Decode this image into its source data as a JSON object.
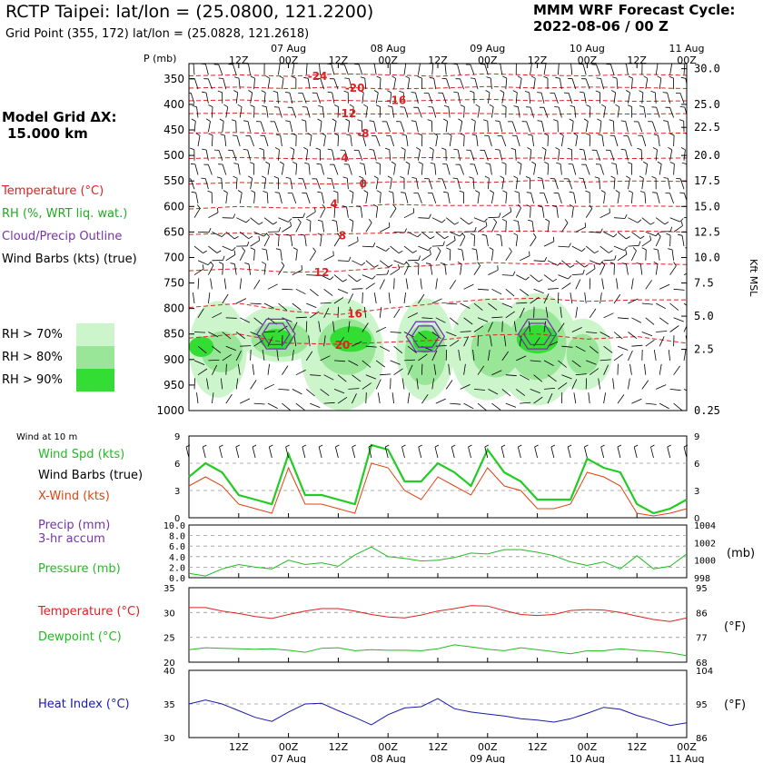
{
  "header": {
    "title": "RCTP Taipei:  lat/lon = (25.0800, 121.2200)",
    "subtitle": "Grid Point (355, 172) lat/lon = (25.0828, 121.2618)",
    "cycle_line1": "MMM WRF Forecast Cycle:",
    "cycle_line2": "2022-08-06 / 00  Z",
    "p_label": "P (mb)"
  },
  "left_panel": {
    "model_grid_label": "Model Grid ΔX:",
    "model_grid_value": "15.000 km",
    "legend_temperature": "Temperature (°C)",
    "legend_rh": "RH (%, WRT liq. wat.)",
    "legend_cloud": "Cloud/Precip Outline",
    "legend_barbs": "Wind Barbs (kts) (true)",
    "rh_bins": [
      {
        "label": "RH > 70%",
        "color": "#ccf5cc"
      },
      {
        "label": "RH > 80%",
        "color": "#99e699"
      },
      {
        "label": "RH > 90%",
        "color": "#33dd33"
      }
    ],
    "wind10_label": "Wind at 10 m",
    "wind_spd_label": "Wind Spd (kts)",
    "wind_barbs_label": "Wind Barbs (true)",
    "xwind_label": "X-Wind (kts)",
    "precip_label": "Precip (mm)",
    "precip_sub": "3-hr accum",
    "pressure_label": "Pressure (mb)",
    "temp_label": "Temperature (°C)",
    "dew_label": "Dewpoint (°C)",
    "heat_label": "Heat Index (°C)"
  },
  "colors": {
    "temperature": "#dd2222",
    "rh_green": "#22cc22",
    "cloud": "#7733aa",
    "xwind": "#dd4411",
    "pressure": "#22bb22",
    "dewpoint": "#22bb22",
    "heat": "#1a1aaa",
    "grid": "#999999"
  },
  "chart_data": [
    {
      "type": "heatmap",
      "name": "sounding-cross-section",
      "xlabel_top": "time (UTC)",
      "time_ticks": [
        "12Z",
        "00Z",
        "12Z",
        "00Z",
        "12Z",
        "00Z",
        "12Z",
        "00Z",
        "12Z",
        "00Z"
      ],
      "date_ticks": [
        "07 Aug",
        "08 Aug",
        "09 Aug",
        "10 Aug",
        "11 Aug"
      ],
      "x_hours": [
        0,
        120
      ],
      "pressure_ticks": [
        350,
        400,
        450,
        500,
        550,
        600,
        650,
        700,
        750,
        800,
        850,
        900,
        950,
        1000
      ],
      "height_ticks": [
        "30.0",
        "25.0",
        "22.5",
        "20.0",
        "17.5",
        "15.0",
        "12.5",
        "10.0",
        "7.5",
        "5.0",
        "2.5",
        "0.25"
      ],
      "height_pressures": [
        330,
        400,
        445,
        500,
        550,
        600,
        650,
        700,
        750,
        815,
        880,
        1000
      ],
      "right_label": "Kft MSL",
      "isotherm_labels": [
        {
          "text": "-24",
          "hour": 31,
          "p": 345
        },
        {
          "text": "-20",
          "hour": 40,
          "p": 368
        },
        {
          "text": "-16",
          "hour": 50,
          "p": 392
        },
        {
          "text": "-12",
          "hour": 38,
          "p": 418
        },
        {
          "text": "-8",
          "hour": 42,
          "p": 457
        },
        {
          "text": "-4",
          "hour": 37,
          "p": 505
        },
        {
          "text": "0",
          "hour": 42,
          "p": 556
        },
        {
          "text": "4",
          "hour": 35,
          "p": 595
        },
        {
          "text": "8",
          "hour": 37,
          "p": 657
        },
        {
          "text": "12",
          "hour": 32,
          "p": 729
        },
        {
          "text": "16",
          "hour": 40,
          "p": 810
        },
        {
          "text": "20",
          "hour": 37,
          "p": 872
        }
      ],
      "isotherms": [
        {
          "temp": -24,
          "p": [
            344,
            342,
            345,
            340,
            342,
            345,
            340,
            343,
            344,
            341,
            343
          ]
        },
        {
          "temp": -20,
          "p": [
            368,
            366,
            369,
            366,
            370,
            368,
            365,
            368,
            366,
            367,
            369
          ]
        },
        {
          "temp": -16,
          "p": [
            393,
            391,
            395,
            392,
            394,
            392,
            390,
            393,
            392,
            394,
            393
          ]
        },
        {
          "temp": -12,
          "p": [
            418,
            417,
            420,
            418,
            419,
            417,
            418,
            420,
            418,
            419,
            418
          ]
        },
        {
          "temp": -8,
          "p": [
            456,
            455,
            458,
            457,
            456,
            458,
            456,
            457,
            456,
            457,
            456
          ]
        },
        {
          "temp": -4,
          "p": [
            506,
            504,
            506,
            507,
            505,
            504,
            506,
            505,
            507,
            506,
            505
          ]
        },
        {
          "temp": 0,
          "p": [
            556,
            553,
            555,
            556,
            552,
            551,
            553,
            549,
            552,
            550,
            551
          ]
        },
        {
          "temp": 4,
          "p": [
            605,
            600,
            603,
            602,
            596,
            598,
            598,
            598,
            600,
            599,
            600
          ]
        },
        {
          "temp": 8,
          "p": [
            655,
            652,
            656,
            654,
            652,
            650,
            649,
            648,
            650,
            648,
            650
          ]
        },
        {
          "temp": 12,
          "p": [
            726,
            722,
            729,
            727,
            720,
            715,
            710,
            713,
            712,
            712,
            714
          ]
        },
        {
          "temp": 16,
          "p": [
            798,
            790,
            805,
            812,
            800,
            790,
            782,
            780,
            786,
            783,
            783
          ]
        },
        {
          "temp": 20,
          "p": [
            858,
            850,
            868,
            870,
            866,
            862,
            852,
            850,
            860,
            855,
            868
          ]
        }
      ],
      "rh_blobs": [
        {
          "level": 70,
          "hour": 7,
          "p": 880,
          "rx": 7,
          "ry": 95
        },
        {
          "level": 80,
          "hour": 8,
          "p": 885,
          "rx": 5,
          "ry": 40
        },
        {
          "level": 90,
          "hour": 3,
          "p": 875,
          "rx": 3,
          "ry": 20
        },
        {
          "level": 70,
          "hour": 22,
          "p": 850,
          "rx": 10,
          "ry": 55
        },
        {
          "level": 80,
          "hour": 22,
          "p": 860,
          "rx": 7,
          "ry": 35
        },
        {
          "level": 90,
          "hour": 21,
          "p": 860,
          "rx": 4,
          "ry": 20
        },
        {
          "level": 70,
          "hour": 37,
          "p": 890,
          "rx": 10,
          "ry": 110
        },
        {
          "level": 80,
          "hour": 38,
          "p": 875,
          "rx": 7,
          "ry": 55
        },
        {
          "level": 90,
          "hour": 39,
          "p": 860,
          "rx": 5,
          "ry": 25
        },
        {
          "level": 70,
          "hour": 57,
          "p": 880,
          "rx": 7,
          "ry": 100
        },
        {
          "level": 80,
          "hour": 57,
          "p": 890,
          "rx": 5,
          "ry": 60
        },
        {
          "level": 90,
          "hour": 57,
          "p": 865,
          "rx": 3,
          "ry": 22
        },
        {
          "level": 70,
          "hour": 72,
          "p": 880,
          "rx": 9,
          "ry": 100
        },
        {
          "level": 80,
          "hour": 74,
          "p": 880,
          "rx": 6,
          "ry": 55
        },
        {
          "level": 70,
          "hour": 84,
          "p": 880,
          "rx": 10,
          "ry": 110
        },
        {
          "level": 80,
          "hour": 84,
          "p": 870,
          "rx": 7,
          "ry": 70
        },
        {
          "level": 90,
          "hour": 84,
          "p": 860,
          "rx": 5,
          "ry": 28
        },
        {
          "level": 70,
          "hour": 95,
          "p": 890,
          "rx": 7,
          "ry": 70
        },
        {
          "level": 80,
          "hour": 95,
          "p": 890,
          "rx": 4,
          "ry": 40
        }
      ],
      "cloud_outlines": [
        {
          "hour": 21,
          "p": 850
        },
        {
          "hour": 57,
          "p": 855
        },
        {
          "hour": 84,
          "p": 850
        }
      ]
    },
    {
      "type": "line",
      "name": "surface-wind",
      "x_hours": [
        0,
        4,
        8,
        12,
        16,
        20,
        24,
        28,
        32,
        36,
        40,
        44,
        48,
        52,
        56,
        60,
        64,
        68,
        72,
        76,
        80,
        84,
        88,
        92,
        96,
        100,
        104,
        108,
        112,
        116,
        120
      ],
      "ylim": [
        0,
        9
      ],
      "yticks": [
        0,
        3,
        6,
        9
      ],
      "series": [
        {
          "name": "Wind Spd (kts)",
          "values": [
            4.5,
            6,
            5,
            2.5,
            2,
            1.5,
            7,
            2.5,
            2.5,
            2,
            1.5,
            8,
            7.5,
            4,
            4,
            6,
            5,
            3.5,
            7.5,
            5,
            4,
            2,
            2,
            2,
            6.5,
            5.5,
            5,
            1.5,
            0.5,
            1,
            2
          ]
        },
        {
          "name": "X-Wind (kts)",
          "values": [
            3.5,
            4.5,
            3.5,
            1.5,
            1,
            0.5,
            5.5,
            1.5,
            1.5,
            1,
            0.5,
            6,
            5.5,
            3,
            2,
            4.5,
            3.5,
            2.5,
            5.5,
            3.5,
            3,
            1,
            1,
            1.5,
            5,
            4.5,
            3.5,
            0.5,
            0.2,
            0.5,
            1
          ]
        }
      ]
    },
    {
      "type": "line",
      "name": "precip-pressure",
      "x_hours": [
        0,
        4,
        8,
        12,
        16,
        20,
        24,
        28,
        32,
        36,
        40,
        44,
        48,
        52,
        56,
        60,
        64,
        68,
        72,
        76,
        80,
        84,
        88,
        92,
        96,
        100,
        104,
        108,
        112,
        116,
        120
      ],
      "ylim_precip": [
        0,
        10
      ],
      "yticks_precip": [
        "10.0",
        "8.0",
        "6.0",
        "4.0",
        "2.0",
        "0.0"
      ],
      "ylim_pressure": [
        998,
        1004
      ],
      "yticks_pressure": [
        "1004",
        "1002",
        "1000",
        "998"
      ],
      "series": [
        {
          "name": "Pressure (mb)",
          "values": [
            998.5,
            998.2,
            999,
            999.5,
            999.2,
            999,
            1000,
            999.5,
            999.7,
            999.3,
            1000.6,
            1001.5,
            1000.4,
            1000.2,
            999.9,
            1000,
            1000.3,
            1000.8,
            1000.7,
            1001.2,
            1001.2,
            1000.9,
            1000.5,
            999.8,
            999.4,
            999.8,
            999,
            1000.5,
            999,
            999.3,
            1000.7
          ]
        }
      ]
    },
    {
      "type": "line",
      "name": "temperature-dewpoint",
      "x_hours": [
        0,
        4,
        8,
        12,
        16,
        20,
        24,
        28,
        32,
        36,
        40,
        44,
        48,
        52,
        56,
        60,
        64,
        68,
        72,
        76,
        80,
        84,
        88,
        92,
        96,
        100,
        104,
        108,
        112,
        116,
        120
      ],
      "ylim": [
        20,
        35
      ],
      "yticks": [
        20,
        25,
        30,
        35
      ],
      "yticks_f": [
        "68",
        "77",
        "86",
        "95"
      ],
      "right_label": "(°F)",
      "series": [
        {
          "name": "Temperature (°C)",
          "values": [
            31,
            31,
            30.3,
            29.8,
            29.2,
            28.8,
            29.6,
            30.3,
            30.8,
            30.8,
            30.3,
            29.6,
            29.1,
            28.9,
            29.5,
            30.3,
            30.8,
            31.4,
            31.3,
            30.4,
            29.6,
            29.4,
            29.6,
            30.4,
            30.6,
            30.5,
            30,
            29.3,
            28.6,
            28.2,
            28.9
          ]
        },
        {
          "name": "Dewpoint (°C)",
          "values": [
            22.5,
            22.9,
            22.8,
            22.7,
            22.6,
            22.7,
            22.4,
            22,
            22.8,
            22.9,
            22.3,
            22.5,
            22.4,
            22.4,
            22.3,
            22.7,
            23.5,
            23.1,
            22.6,
            22.3,
            22.9,
            22.5,
            22.1,
            21.7,
            22.3,
            22.3,
            22.7,
            22.4,
            22.2,
            21.9,
            21.3
          ]
        }
      ]
    },
    {
      "type": "line",
      "name": "heat-index",
      "x_hours": [
        0,
        4,
        8,
        12,
        16,
        20,
        24,
        28,
        32,
        36,
        40,
        44,
        48,
        52,
        56,
        60,
        64,
        68,
        72,
        76,
        80,
        84,
        88,
        92,
        96,
        100,
        104,
        108,
        112,
        116,
        120
      ],
      "ylim": [
        30,
        40
      ],
      "yticks": [
        30,
        35,
        40
      ],
      "yticks_f": [
        "86",
        "95",
        "104"
      ],
      "right_label": "(°F)",
      "series": [
        {
          "name": "Heat Index (°C)",
          "values": [
            35,
            35.6,
            35,
            34,
            33,
            32.4,
            33.8,
            35,
            35.1,
            34,
            33,
            31.9,
            33.4,
            34.4,
            34.6,
            35.8,
            34.3,
            33.8,
            33.5,
            33.2,
            32.8,
            32.6,
            32.3,
            32.8,
            33.6,
            34.5,
            34.2,
            33.3,
            32.6,
            31.8,
            32.2
          ]
        }
      ]
    }
  ]
}
